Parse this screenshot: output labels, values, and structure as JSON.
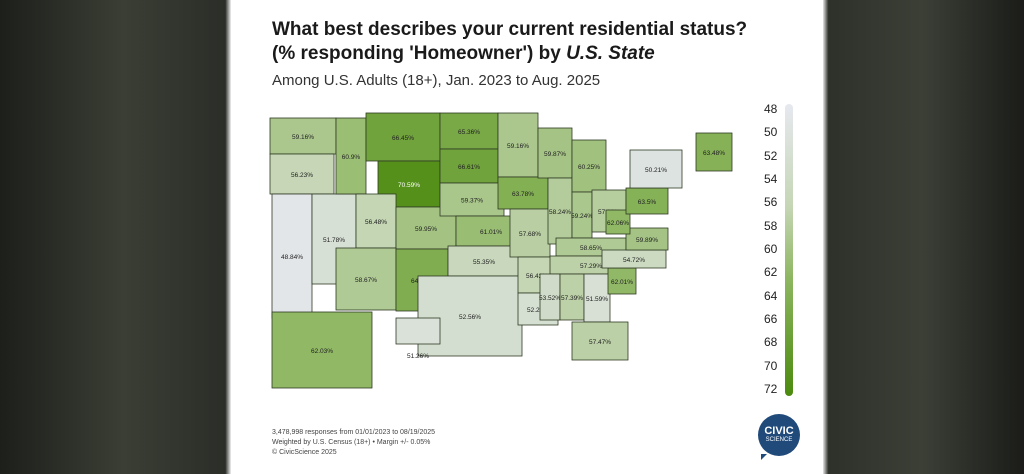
{
  "title_line1": "What best describes your current residential status?",
  "title_line2_prefix": "(% responding 'Homeowner') by ",
  "title_line2_emph": "U.S. State",
  "subtitle": "Among U.S. Adults (18+), Jan. 2023 to Aug. 2025",
  "footer": {
    "line1": "3,478,998 responses from 01/01/2023 to 08/19/2025",
    "line2": "Weighted by U.S. Census (18+)  •  Margin +/- 0.05%",
    "line3": "© CivicScience 2025"
  },
  "logo": {
    "line1": "CIVIC",
    "line2": "SCIENCE"
  },
  "chart_data": {
    "type": "choropleth",
    "scale": {
      "min": 48,
      "max": 72,
      "ticks": [
        "48",
        "50",
        "52",
        "54",
        "56",
        "58",
        "60",
        "62",
        "64",
        "66",
        "68",
        "70",
        "72"
      ],
      "color_low": "#e6e8ef",
      "color_high": "#4b8a0e"
    },
    "states": [
      {
        "state": "WA",
        "value": 59.16,
        "label": "59.16%"
      },
      {
        "state": "OR",
        "value": 56.23,
        "label": "56.23%"
      },
      {
        "state": "CA",
        "value": 48.84,
        "label": "48.84%"
      },
      {
        "state": "NV",
        "value": 51.78,
        "label": "51.78%"
      },
      {
        "state": "ID",
        "value": 60.9,
        "label": "60.9%"
      },
      {
        "state": "MT",
        "value": 66.45,
        "label": "66.45%"
      },
      {
        "state": "WY",
        "value": 70.59,
        "label": "70.59%"
      },
      {
        "state": "UT",
        "value": 56.48,
        "label": "56.48%"
      },
      {
        "state": "CO",
        "value": 59.95,
        "label": "59.95%"
      },
      {
        "state": "AZ",
        "value": 58.67,
        "label": "58.67%"
      },
      {
        "state": "NM",
        "value": 64.27,
        "label": "64.27%"
      },
      {
        "state": "ND",
        "value": 65.36,
        "label": "65.36%"
      },
      {
        "state": "SD",
        "value": 66.61,
        "label": "66.61%"
      },
      {
        "state": "NE",
        "value": 59.37,
        "label": "59.37%"
      },
      {
        "state": "KS",
        "value": 61.01,
        "label": "61.01%"
      },
      {
        "state": "OK",
        "value": 55.35,
        "label": "55.35%"
      },
      {
        "state": "TX",
        "value": 52.56,
        "label": "52.56%"
      },
      {
        "state": "MN",
        "value": 59.16,
        "label": "59.16%"
      },
      {
        "state": "IA",
        "value": 63.78,
        "label": "63.78%"
      },
      {
        "state": "MO",
        "value": 57.68,
        "label": "57.68%"
      },
      {
        "state": "AR",
        "value": 56.42,
        "label": "56.42%"
      },
      {
        "state": "LA",
        "value": 52.26,
        "label": "52.26%"
      },
      {
        "state": "WI",
        "value": 59.87,
        "label": "59.87%"
      },
      {
        "state": "IL",
        "value": 58.24,
        "label": "58.24%"
      },
      {
        "state": "MI",
        "value": 60.25,
        "label": "60.25%"
      },
      {
        "state": "IN",
        "value": 59.24,
        "label": "59.24%"
      },
      {
        "state": "OH",
        "value": 57.99,
        "label": "57.99%"
      },
      {
        "state": "KY",
        "value": 58.65,
        "label": "58.65%"
      },
      {
        "state": "TN",
        "value": 57.29,
        "label": "57.29%"
      },
      {
        "state": "MS",
        "value": 53.52,
        "label": "53.52%"
      },
      {
        "state": "AL",
        "value": 57.39,
        "label": "57.39%"
      },
      {
        "state": "GA",
        "value": 51.59,
        "label": "51.59%"
      },
      {
        "state": "FL",
        "value": 57.47,
        "label": "57.47%"
      },
      {
        "state": "SC",
        "value": 62.01,
        "label": "62.01%"
      },
      {
        "state": "NC",
        "value": 54.72,
        "label": "54.72%"
      },
      {
        "state": "VA",
        "value": 59.89,
        "label": "59.89%"
      },
      {
        "state": "WV",
        "value": 62.06,
        "label": "62.06%"
      },
      {
        "state": "PA",
        "value": 63.5,
        "label": "63.5%"
      },
      {
        "state": "NY",
        "value": 50.21,
        "label": "50.21%"
      },
      {
        "state": "ME",
        "value": 63.48,
        "label": "63.48%"
      },
      {
        "state": "AK",
        "value": 62.03,
        "label": "62.03%"
      },
      {
        "state": "HI",
        "value": 51.26,
        "label": "51.26%"
      }
    ]
  }
}
